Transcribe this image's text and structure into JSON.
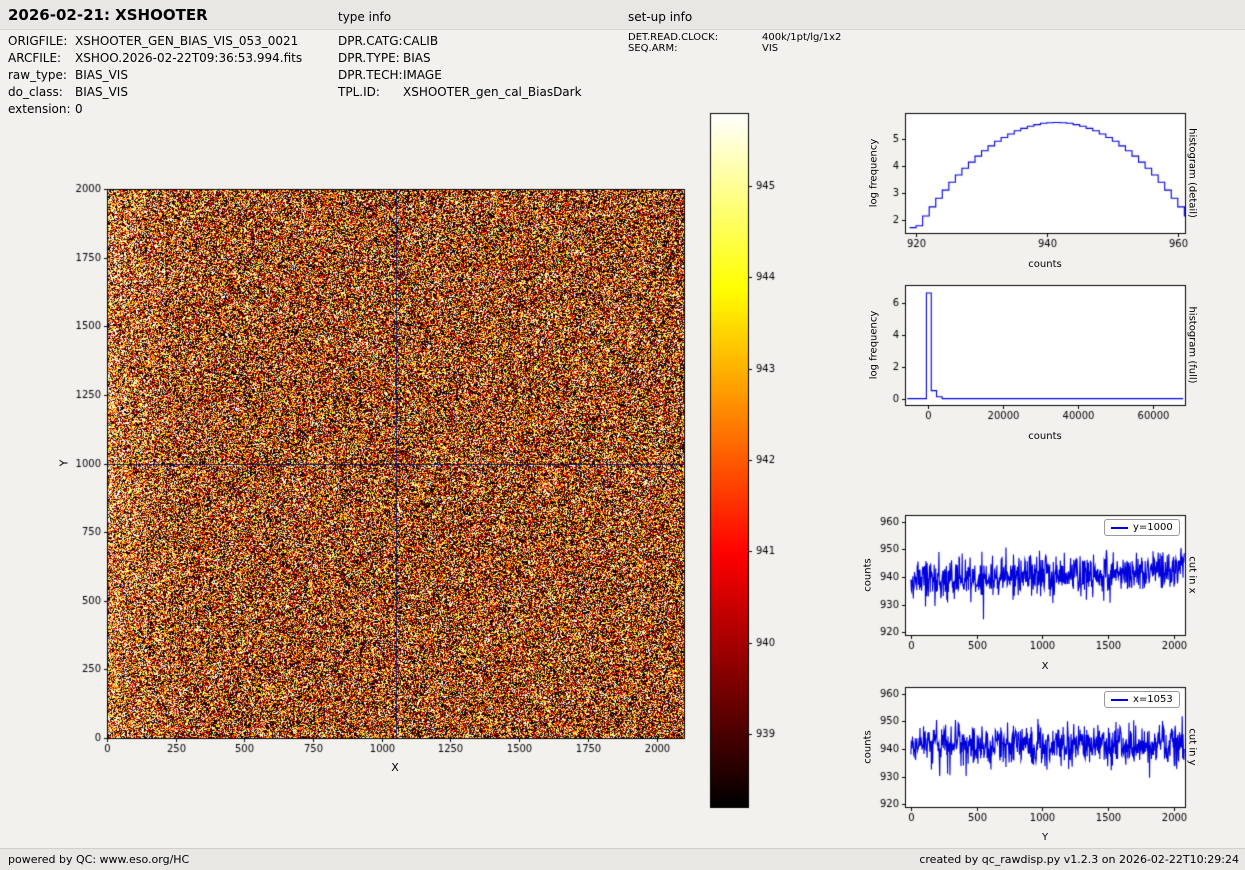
{
  "page": {
    "bg": "#f2f1ee",
    "bar_bg": "#e8e7e3",
    "accent_blue": "#0000dd",
    "crosshair_color": "#16165e"
  },
  "header": {
    "title": "2026-02-21: XSHOOTER",
    "type_info_label": "type info",
    "setup_info_label": "set-up info"
  },
  "file_info": {
    "rows": [
      {
        "label": "ORIGFILE:",
        "value": "XSHOOTER_GEN_BIAS_VIS_053_0021"
      },
      {
        "label": "ARCFILE:",
        "value": "XSHOO.2026-02-22T09:36:53.994.fits"
      },
      {
        "label": "raw_type:",
        "value": "BIAS_VIS"
      },
      {
        "label": "do_class:",
        "value": "BIAS_VIS"
      },
      {
        "label": "extension:",
        "value": "0"
      }
    ]
  },
  "type_info": {
    "rows": [
      {
        "label": "DPR.CATG:",
        "value": "CALIB"
      },
      {
        "label": "DPR.TYPE:",
        "value": "BIAS"
      },
      {
        "label": "DPR.TECH:",
        "value": "IMAGE"
      },
      {
        "label": "TPL.ID:",
        "value": "XSHOOTER_gen_cal_BiasDark"
      }
    ]
  },
  "setup_info": {
    "rows": [
      {
        "label": "DET.READ.CLOCK:",
        "value": "400k/1pt/lg/1x2"
      },
      {
        "label": "SEQ.ARM:",
        "value": "VIS"
      }
    ]
  },
  "footer": {
    "left": "powered by QC: www.eso.org/HC",
    "right": "created by qc_rawdisp.py v1.2.3 on 2026-02-22T10:29:24"
  },
  "chart_data": [
    {
      "type": "heatmap",
      "name": "bias-image",
      "xlabel": "X",
      "ylabel": "Y",
      "xlim": [
        0,
        2100
      ],
      "ylim": [
        0,
        2000
      ],
      "xticks": [
        0,
        250,
        500,
        750,
        1000,
        1250,
        1500,
        1750,
        2000
      ],
      "yticks": [
        0,
        250,
        500,
        750,
        1000,
        1250,
        1500,
        1750,
        2000
      ],
      "colormap": "hot",
      "value_mean": 940.8,
      "value_std": 4.2,
      "color_range": [
        938.2,
        945.8
      ],
      "crosshair": {
        "x": 1053,
        "y": 1000
      },
      "colorbar_ticks": [
        939,
        940,
        941,
        942,
        943,
        944,
        945
      ]
    },
    {
      "type": "line",
      "style": "step",
      "name": "histogram-detail",
      "xlabel": "counts",
      "ylabel": "log frequency",
      "right_label": "histogram (detail)",
      "xlim": [
        918.3,
        961.1
      ],
      "ylim": [
        1.5,
        5.95
      ],
      "xticks": [
        920,
        940,
        960
      ],
      "yticks": [
        2,
        3,
        4,
        5
      ],
      "x": [
        919,
        920,
        921,
        922,
        923,
        924,
        925,
        926,
        927,
        928,
        929,
        930,
        931,
        932,
        933,
        934,
        935,
        936,
        937,
        938,
        939,
        940,
        941,
        942,
        943,
        944,
        945,
        946,
        947,
        948,
        949,
        950,
        951,
        952,
        953,
        954,
        955,
        956,
        957,
        958,
        959,
        960,
        961,
        962,
        963
      ],
      "y": [
        1.7,
        1.77,
        2.13,
        2.47,
        2.79,
        3.09,
        3.38,
        3.65,
        3.9,
        4.13,
        4.35,
        4.55,
        4.73,
        4.9,
        5.04,
        5.17,
        5.29,
        5.38,
        5.46,
        5.52,
        5.57,
        5.59,
        5.6,
        5.59,
        5.57,
        5.52,
        5.46,
        5.38,
        5.29,
        5.17,
        5.04,
        4.9,
        4.73,
        4.55,
        4.35,
        4.13,
        3.9,
        3.65,
        3.38,
        3.09,
        2.79,
        2.47,
        2.13,
        1.77,
        1.7
      ]
    },
    {
      "type": "line",
      "style": "step",
      "name": "histogram-full",
      "xlabel": "counts",
      "ylabel": "log frequency",
      "right_label": "histogram (full)",
      "xlim": [
        -6100,
        68500
      ],
      "ylim": [
        -0.4,
        7.1
      ],
      "xticks": [
        0,
        20000,
        40000,
        60000
      ],
      "yticks": [
        0,
        2,
        4,
        6
      ],
      "x": [
        -5500,
        -400,
        900,
        2300,
        3800,
        68000
      ],
      "y": [
        0,
        6.6,
        0.5,
        0.12,
        0,
        0
      ]
    },
    {
      "type": "line",
      "name": "cut-in-x",
      "legend": "y=1000",
      "xlabel": "X",
      "ylabel": "counts",
      "right_label": "cut in x",
      "xlim": [
        -45,
        2085
      ],
      "ylim": [
        919,
        962.5
      ],
      "xticks": [
        0,
        500,
        1000,
        1500,
        2000
      ],
      "yticks": [
        920,
        930,
        940,
        950,
        960
      ],
      "noise": {
        "mean_start": 938.6,
        "mean_end": 942.4,
        "std": 3.8,
        "n": 2080,
        "seed": 7
      }
    },
    {
      "type": "line",
      "name": "cut-in-y",
      "legend": "x=1053",
      "xlabel": "Y",
      "ylabel": "counts",
      "right_label": "cut in y",
      "xlim": [
        -45,
        2085
      ],
      "ylim": [
        919,
        962.5
      ],
      "xticks": [
        0,
        500,
        1000,
        1500,
        2000
      ],
      "yticks": [
        920,
        930,
        940,
        950,
        960
      ],
      "noise": {
        "mean_start": 941.2,
        "mean_end": 941.2,
        "std": 3.8,
        "n": 2080,
        "seed": 13
      }
    }
  ]
}
